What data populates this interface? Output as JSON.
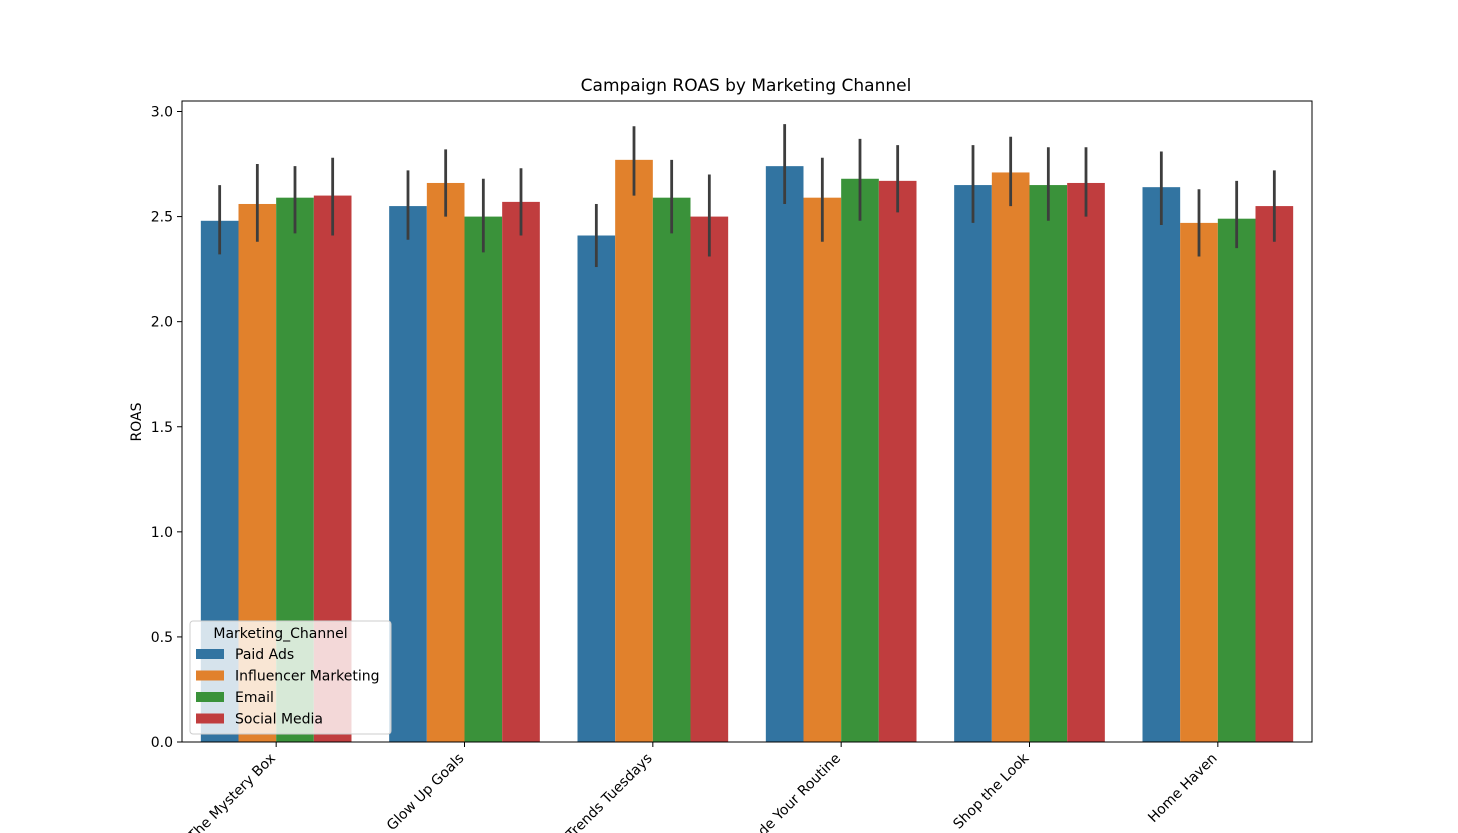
{
  "chart_data": {
    "type": "bar",
    "title": "Campaign ROAS by Marketing Channel",
    "xlabel": "",
    "ylabel": "ROAS",
    "ylim": [
      0,
      3.05
    ],
    "yticks": [
      "0.0",
      "0.5",
      "1.0",
      "1.5",
      "2.0",
      "2.5",
      "3.0"
    ],
    "grid": false,
    "categories": [
      "The Mystery Box",
      "Glow Up Goals",
      "Trends Tuesdays",
      "Upgrade Your Routine",
      "Shop the Look",
      "Home Haven"
    ],
    "legend": {
      "title": "Marketing_Channel",
      "placement": "lower-left"
    },
    "series": [
      {
        "name": "Paid Ads",
        "color": "#3274a1",
        "values": [
          2.48,
          2.55,
          2.41,
          2.74,
          2.65,
          2.64
        ],
        "ci_low": [
          2.32,
          2.39,
          2.26,
          2.56,
          2.47,
          2.46
        ],
        "ci_high": [
          2.65,
          2.72,
          2.56,
          2.94,
          2.84,
          2.81
        ]
      },
      {
        "name": "Influencer Marketing",
        "color": "#e1812c",
        "values": [
          2.56,
          2.66,
          2.77,
          2.59,
          2.71,
          2.47
        ],
        "ci_low": [
          2.38,
          2.5,
          2.6,
          2.38,
          2.55,
          2.31
        ],
        "ci_high": [
          2.75,
          2.82,
          2.93,
          2.78,
          2.88,
          2.63
        ]
      },
      {
        "name": "Email",
        "color": "#3a923a",
        "values": [
          2.59,
          2.5,
          2.59,
          2.68,
          2.65,
          2.49
        ],
        "ci_low": [
          2.42,
          2.33,
          2.42,
          2.48,
          2.48,
          2.35
        ],
        "ci_high": [
          2.74,
          2.68,
          2.77,
          2.87,
          2.83,
          2.67
        ]
      },
      {
        "name": "Social Media",
        "color": "#c03d3e",
        "values": [
          2.6,
          2.57,
          2.5,
          2.67,
          2.66,
          2.55
        ],
        "ci_low": [
          2.41,
          2.41,
          2.31,
          2.52,
          2.5,
          2.38
        ],
        "ci_high": [
          2.78,
          2.73,
          2.7,
          2.84,
          2.83,
          2.72
        ]
      }
    ]
  }
}
